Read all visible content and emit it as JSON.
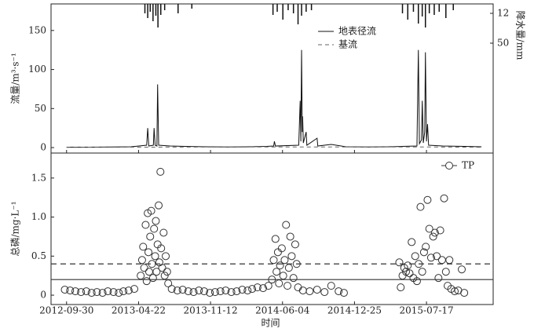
{
  "chart_data": [
    {
      "type": "line",
      "y_label": "流量/m³·s⁻¹",
      "y2_label": "降水量/mm",
      "xlim": [
        "2012-08-17",
        "2016-01-22"
      ],
      "xticks": [
        "2012-09-30",
        "2013-04-22",
        "2013-11-12",
        "2014-06-04",
        "2014-12-25",
        "2015-07-17"
      ],
      "ylim": [
        -7,
        184
      ],
      "yticks": [
        0,
        50,
        100,
        150
      ],
      "y2lim": [
        0,
        190
      ],
      "y2ticks": [
        12,
        50
      ],
      "y2_inverted": true,
      "legend": "top-right",
      "series": [
        {
          "name": "地表径流",
          "color": "#111111",
          "dash": "solid",
          "x": [
            "2012-09-30",
            "2012-12-01",
            "2013-02-01",
            "2013-04-01",
            "2013-05-15",
            "2013-05-18",
            "2013-05-21",
            "2013-06-03",
            "2013-06-05",
            "2013-06-08",
            "2013-06-13",
            "2013-06-15",
            "2013-06-18",
            "2013-07-20",
            "2013-09-01",
            "2013-11-01",
            "2014-01-01",
            "2014-03-01",
            "2014-04-20",
            "2014-05-10",
            "2014-05-12",
            "2014-05-15",
            "2014-07-20",
            "2014-07-24",
            "2014-07-26",
            "2014-07-28",
            "2014-07-30",
            "2014-07-31",
            "2014-08-02",
            "2014-08-10",
            "2014-08-12",
            "2014-09-10",
            "2014-09-12",
            "2014-10-20",
            "2014-12-01",
            "2015-02-01",
            "2015-04-01",
            "2015-06-20",
            "2015-06-24",
            "2015-06-27",
            "2015-07-03",
            "2015-07-05",
            "2015-07-08",
            "2015-07-12",
            "2015-07-14",
            "2015-07-17",
            "2015-07-20",
            "2015-07-23",
            "2015-09-01",
            "2015-11-01",
            "2015-12-20"
          ],
          "values": [
            0.5,
            0.5,
            0.8,
            1,
            3,
            25,
            2,
            3,
            25,
            3,
            2,
            81,
            3,
            2,
            1.5,
            1,
            0.8,
            1,
            1.5,
            2,
            8,
            2,
            3,
            60,
            8,
            125,
            20,
            40,
            6,
            20,
            3,
            12,
            2,
            4,
            1,
            0.8,
            1,
            2,
            125,
            5,
            10,
            60,
            6,
            20,
            122,
            8,
            30,
            3,
            2,
            1.5,
            1
          ]
        },
        {
          "name": "基流",
          "color": "#666666",
          "dash": "dashed",
          "x": [
            "2012-09-30",
            "2013-06-15",
            "2014-07-28",
            "2015-07-14",
            "2015-12-20"
          ],
          "values": [
            0.3,
            0.6,
            0.8,
            0.8,
            0.4
          ]
        },
        {
          "color": "#111111",
          "kind": "bar",
          "axis": "y2",
          "x": [
            "2013-05-10",
            "2013-05-18",
            "2013-05-25",
            "2013-06-02",
            "2013-06-10",
            "2013-06-16",
            "2013-06-24",
            "2013-07-05",
            "2013-08-12",
            "2013-09-20",
            "2014-05-08",
            "2014-05-20",
            "2014-06-05",
            "2014-06-20",
            "2014-07-05",
            "2014-07-18",
            "2014-07-28",
            "2014-08-10",
            "2014-08-25",
            "2015-05-10",
            "2015-05-25",
            "2015-06-10",
            "2015-06-24",
            "2015-07-05",
            "2015-07-14",
            "2015-07-25",
            "2015-08-08",
            "2015-08-22",
            "2015-09-10",
            "2015-10-01"
          ],
          "values": [
            12,
            18,
            10,
            22,
            15,
            30,
            14,
            8,
            12,
            6,
            14,
            10,
            20,
            8,
            12,
            26,
            15,
            10,
            8,
            12,
            20,
            10,
            25,
            16,
            30,
            12,
            14,
            10,
            18,
            8
          ]
        }
      ]
    },
    {
      "type": "scatter",
      "y_label": "总磷/mg·L⁻¹",
      "x_label": "时间",
      "xlim": [
        "2012-08-17",
        "2016-01-22"
      ],
      "xticks": [
        "2012-09-30",
        "2013-04-22",
        "2013-11-12",
        "2014-06-04",
        "2014-12-25",
        "2015-07-17"
      ],
      "ylim": [
        -0.12,
        1.82
      ],
      "yticks": [
        0,
        0.5,
        {
          "value": 1,
          "label": "1.0"
        },
        1.5
      ],
      "hlines": [
        {
          "value": 0.2,
          "dash": "solid"
        },
        {
          "value": 0.4,
          "dash": "dashed"
        }
      ],
      "legend": "top-right",
      "series": [
        {
          "name": "TP",
          "color": "#333333",
          "x": [
            "2012-09-25",
            "2012-10-10",
            "2012-10-25",
            "2012-11-10",
            "2012-11-25",
            "2012-12-10",
            "2012-12-25",
            "2013-01-10",
            "2013-01-25",
            "2013-02-10",
            "2013-02-25",
            "2013-03-10",
            "2013-03-25",
            "2013-04-10",
            "2013-04-28",
            "2013-05-02",
            "2013-05-05",
            "2013-05-08",
            "2013-05-12",
            "2013-05-15",
            "2013-05-18",
            "2013-05-20",
            "2013-05-22",
            "2013-05-25",
            "2013-05-28",
            "2013-05-30",
            "2013-06-02",
            "2013-06-05",
            "2013-06-08",
            "2013-06-10",
            "2013-06-12",
            "2013-06-15",
            "2013-06-18",
            "2013-06-20",
            "2013-06-23",
            "2013-06-25",
            "2013-06-28",
            "2013-07-02",
            "2013-07-05",
            "2013-07-08",
            "2013-07-12",
            "2013-07-15",
            "2013-07-25",
            "2013-08-10",
            "2013-08-25",
            "2013-09-10",
            "2013-09-25",
            "2013-10-10",
            "2013-10-25",
            "2013-11-10",
            "2013-11-25",
            "2013-12-10",
            "2013-12-25",
            "2014-01-10",
            "2014-01-25",
            "2014-02-10",
            "2014-02-25",
            "2014-03-10",
            "2014-03-25",
            "2014-04-10",
            "2014-04-25",
            "2014-05-05",
            "2014-05-10",
            "2014-05-15",
            "2014-05-18",
            "2014-05-22",
            "2014-05-25",
            "2014-05-28",
            "2014-06-02",
            "2014-06-06",
            "2014-06-10",
            "2014-06-14",
            "2014-06-18",
            "2014-06-22",
            "2014-06-26",
            "2014-06-30",
            "2014-07-05",
            "2014-07-10",
            "2014-07-14",
            "2014-07-18",
            "2014-08-01",
            "2014-08-20",
            "2014-09-10",
            "2014-10-01",
            "2014-10-20",
            "2014-11-10",
            "2014-11-25",
            "2015-05-01",
            "2015-05-05",
            "2015-05-10",
            "2015-05-15",
            "2015-05-20",
            "2015-05-25",
            "2015-05-30",
            "2015-06-05",
            "2015-06-10",
            "2015-06-15",
            "2015-06-20",
            "2015-06-25",
            "2015-06-30",
            "2015-07-05",
            "2015-07-10",
            "2015-07-15",
            "2015-07-20",
            "2015-07-25",
            "2015-07-30",
            "2015-08-05",
            "2015-08-10",
            "2015-08-15",
            "2015-08-20",
            "2015-08-25",
            "2015-08-30",
            "2015-09-05",
            "2015-09-10",
            "2015-09-15",
            "2015-09-20",
            "2015-09-25",
            "2015-10-05",
            "2015-10-15",
            "2015-10-25",
            "2015-11-01"
          ],
          "values": [
            0.07,
            0.06,
            0.05,
            0.04,
            0.05,
            0.03,
            0.04,
            0.03,
            0.05,
            0.04,
            0.03,
            0.05,
            0.06,
            0.08,
            0.25,
            0.45,
            0.62,
            0.35,
            0.9,
            0.18,
            1.05,
            0.55,
            0.3,
            0.75,
            1.08,
            0.4,
            0.22,
            0.85,
            0.5,
            0.95,
            0.3,
            0.65,
            1.15,
            0.42,
            1.58,
            0.6,
            0.35,
            0.8,
            0.25,
            0.5,
            0.3,
            0.15,
            0.08,
            0.06,
            0.07,
            0.05,
            0.04,
            0.06,
            0.05,
            0.03,
            0.04,
            0.05,
            0.06,
            0.04,
            0.05,
            0.07,
            0.06,
            0.08,
            0.1,
            0.09,
            0.12,
            0.2,
            0.45,
            0.72,
            0.3,
            0.55,
            0.15,
            0.38,
            0.6,
            0.25,
            0.45,
            0.9,
            0.12,
            0.35,
            0.75,
            0.5,
            0.22,
            0.65,
            0.4,
            0.1,
            0.06,
            0.05,
            0.07,
            0.04,
            0.12,
            0.05,
            0.03,
            0.42,
            0.1,
            0.25,
            0.35,
            0.3,
            0.38,
            0.28,
            0.68,
            0.22,
            0.5,
            0.18,
            0.4,
            1.13,
            0.3,
            0.55,
            0.62,
            1.22,
            0.85,
            0.48,
            0.75,
            0.8,
            0.5,
            0.22,
            0.83,
            0.45,
            1.24,
            0.3,
            0.12,
            0.45,
            0.08,
            0.05,
            0.06,
            0.33,
            0.03
          ]
        }
      ]
    }
  ]
}
